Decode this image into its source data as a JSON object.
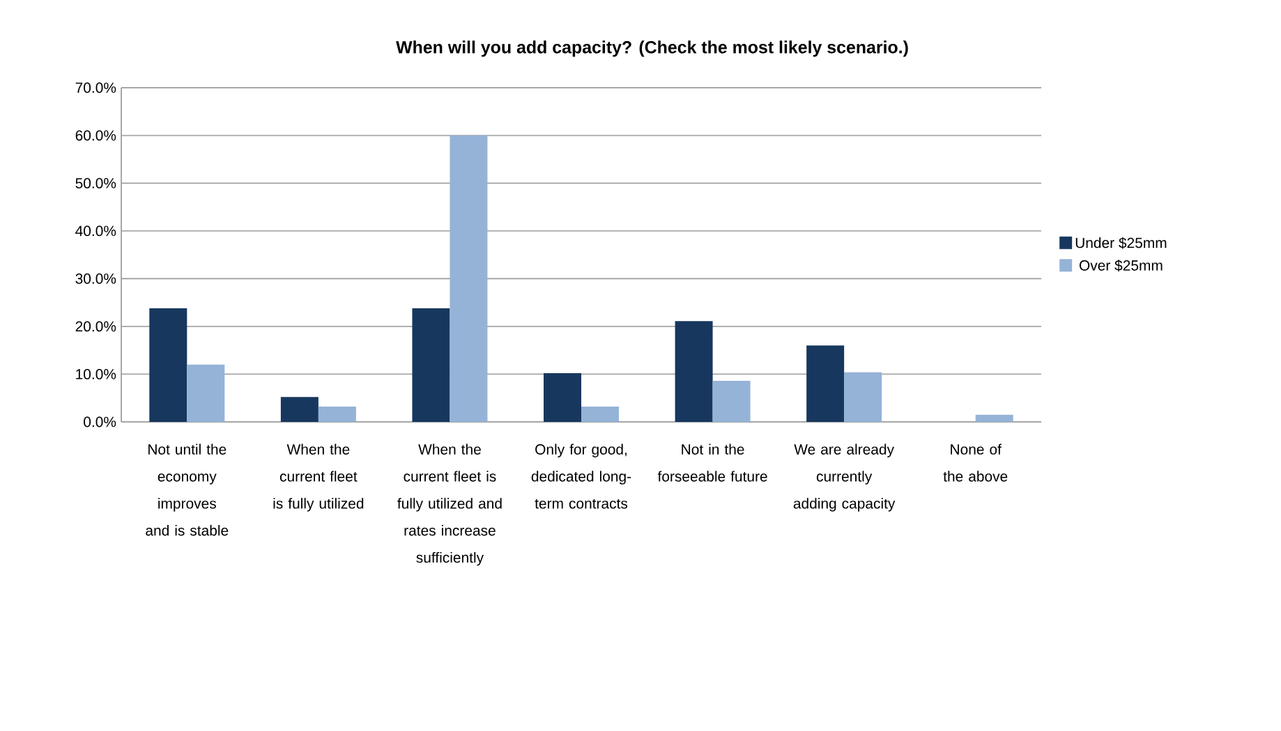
{
  "chart_data": {
    "type": "bar",
    "title": "When will you add capacity? (Check the most likely scenario.)",
    "categories": [
      "Not until the economy improves and is stable",
      "When the current fleet is fully utilized",
      "When the current fleet is fully utilized and rates increase sufficiently",
      "Only for good, dedicated long-term contracts",
      "Not in the forseeable future",
      "We are already currently adding capacity",
      "None of the above"
    ],
    "series": [
      {
        "name": "Under $25mm",
        "color": "#17375e",
        "values": [
          23.8,
          5.2,
          23.8,
          10.2,
          21.1,
          16.0,
          0
        ]
      },
      {
        "name": "Over $25mm",
        "color": "#95b3d7",
        "values": [
          12.0,
          3.2,
          60.0,
          3.2,
          8.6,
          10.4,
          1.5
        ]
      }
    ],
    "ylim": [
      0,
      70
    ],
    "yticks": [
      {
        "value": 0,
        "label": "0.0%"
      },
      {
        "value": 10,
        "label": "10.0%"
      },
      {
        "value": 20,
        "label": "20.0%"
      },
      {
        "value": 30,
        "label": "30.0%"
      },
      {
        "value": 40,
        "label": "40.0%"
      },
      {
        "value": 50,
        "label": "50.0%"
      },
      {
        "value": 60,
        "label": "60.0%"
      },
      {
        "value": 70,
        "label": "70.0%"
      }
    ],
    "grid": "y",
    "legend": "right"
  }
}
